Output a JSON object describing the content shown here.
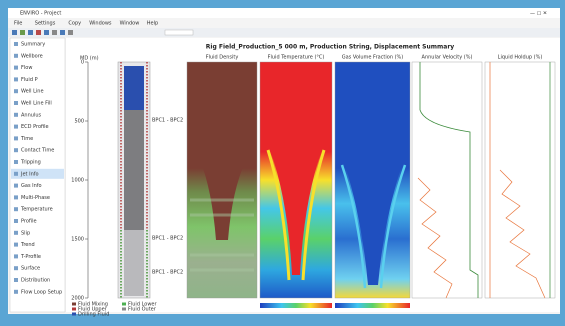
{
  "window_title": "ENVIRO - Project",
  "menu": [
    "File",
    "Settings",
    "Copy",
    "Windows",
    "Window",
    "Help"
  ],
  "sidebar": {
    "items": [
      "Summary",
      "Wellbore",
      "Flow",
      "Fluid P",
      "Well Line",
      "Well Line Fill",
      "Annulus",
      "ECD Profile",
      "Time",
      "Contact Time",
      "Tripping",
      "Jet Info",
      "Gas Info",
      "Multi-Phase",
      "Temperature",
      "Profile",
      "Slip",
      "Trend",
      "T-Profile",
      "Surface",
      "Distribution",
      "Flow Loop Setup"
    ],
    "selected": 11
  },
  "chart_title": "Rig Field_Production_5 000 m, Production String, Displacement Summary",
  "depth_axis": {
    "label": "MD (m)",
    "lim": [
      0,
      2000
    ],
    "ticks": [
      0,
      500,
      1000,
      1500,
      2000
    ]
  },
  "panels": [
    "Fluid Density",
    "Fluid Temperature (°C)",
    "Gas Volume Fraction (%)",
    "Annular Velocity (%)",
    "Liquid Holdup (%)"
  ],
  "well_labels": [
    "BPC1 - BPC2",
    "BPC1 - BPC2",
    "BPC1 - BPC2"
  ],
  "legend": [
    "Fluid Mixing",
    "Fluid Lower",
    "Fluid Upper",
    "Fluid Outer",
    "Drilling Fluid"
  ]
}
